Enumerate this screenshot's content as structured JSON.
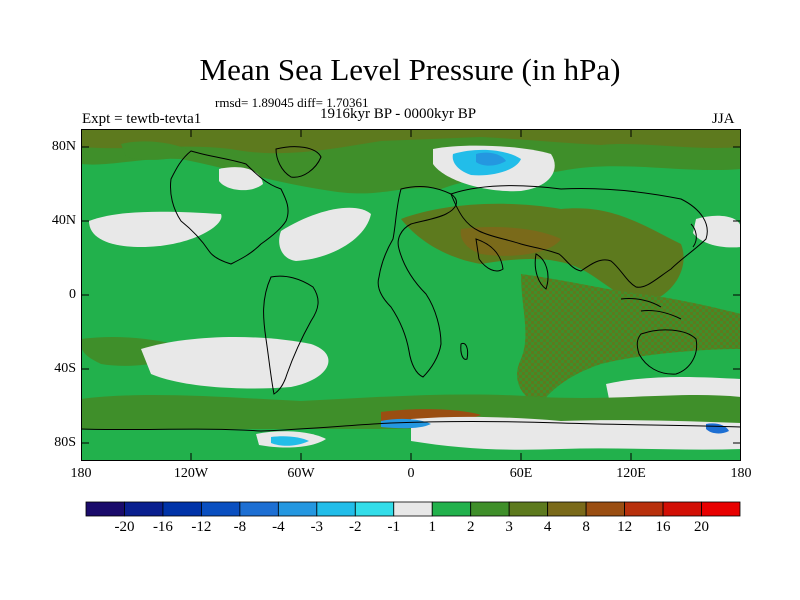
{
  "title": "Mean Sea Level Pressure (in hPa)",
  "stats_line": "rmsd= 1.89045  diff= 1.70361",
  "experiment": "Expt = tewtb-tevta1",
  "period": "1916kyr BP - 0000kyr BP",
  "season": "JJA",
  "lat_labels": [
    "80N",
    "40N",
    "0",
    "40S",
    "80S"
  ],
  "lon_labels": [
    "180",
    "120W",
    "60W",
    "0",
    "60E",
    "120E",
    "180"
  ],
  "colorbar": {
    "labels": [
      "-20",
      "-16",
      "-12",
      "-8",
      "-4",
      "-3",
      "-2",
      "-1",
      "1",
      "2",
      "3",
      "4",
      "8",
      "12",
      "16",
      "20"
    ],
    "colors": [
      "#1a0b6b",
      "#0a1f8f",
      "#0033a8",
      "#0a4fc0",
      "#1d6fd3",
      "#2497e0",
      "#22bde9",
      "#33dde9",
      "#e8e8e8",
      "#22b14c",
      "#3f8f2a",
      "#5d7a1e",
      "#7a6a1a",
      "#9a4e12",
      "#b8300c",
      "#d20f05",
      "#e80000"
    ]
  },
  "colors": {
    "background_green": "#22b14c",
    "dark_green": "#3f8f2a",
    "olive": "#5d7a1e",
    "brown": "#7a6a1a",
    "near_zero": "#e8e8e8",
    "blue": "#1d6fd3",
    "cyan": "#33dde9"
  }
}
